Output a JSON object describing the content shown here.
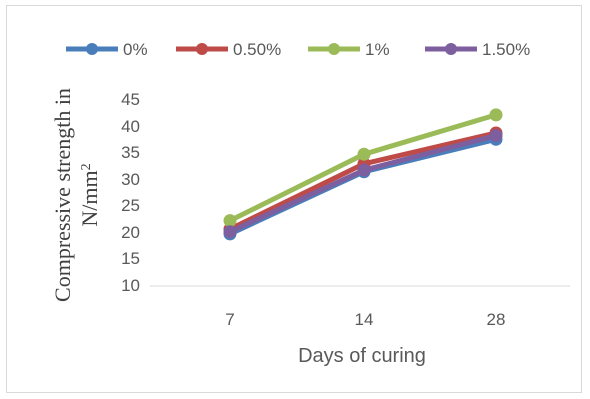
{
  "chart_data": {
    "type": "line",
    "categories": [
      "7",
      "14",
      "28"
    ],
    "series": [
      {
        "name": "0%",
        "color": "#4a7ebb",
        "values": [
          19.8,
          31.5,
          37.6
        ]
      },
      {
        "name": "0.50%",
        "color": "#be4b48",
        "values": [
          20.7,
          33.0,
          38.8
        ]
      },
      {
        "name": "1%",
        "color": "#9bbb59",
        "values": [
          22.3,
          34.8,
          42.2
        ]
      },
      {
        "name": "1.50%",
        "color": "#7d5fa0",
        "values": [
          20.2,
          31.8,
          38.3
        ]
      }
    ],
    "xlabel": "Days of curing",
    "ylabel_line1": "Compressive strength in",
    "ylabel_line2": "N/mm",
    "ylabel_sup": "2",
    "ylim": [
      10,
      45
    ],
    "yticks": [
      "10",
      "15",
      "20",
      "25",
      "30",
      "35",
      "40",
      "45"
    ],
    "grid": false,
    "legend_position": "top"
  }
}
